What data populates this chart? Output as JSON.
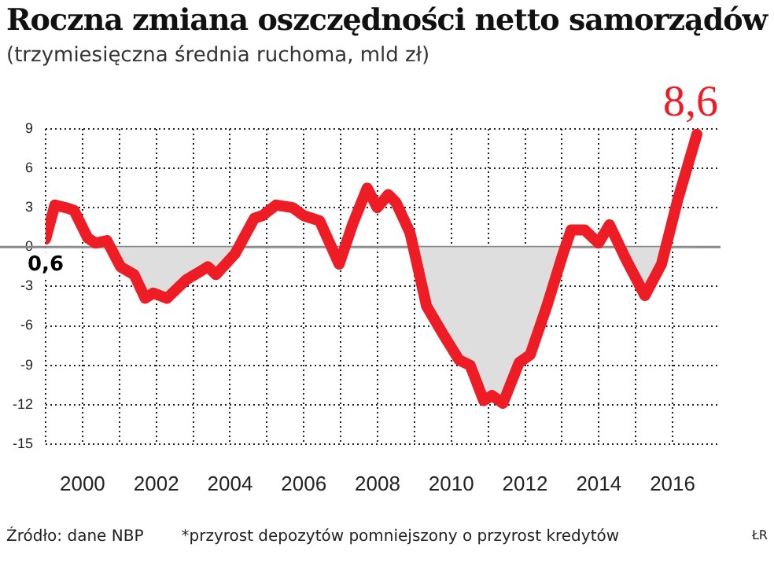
{
  "chart_data": {
    "type": "area",
    "title": "Roczna zmiana oszczędności netto samorządów",
    "subtitle": "(trzymiesięczna średnia ruchoma, mld zł)",
    "x": [
      1999.0,
      1999.25,
      1999.55,
      1999.77,
      2000.14,
      2000.36,
      2000.66,
      2001.03,
      2001.4,
      2001.7,
      2001.92,
      2002.29,
      2002.81,
      2003.4,
      2003.62,
      2004.14,
      2004.66,
      2004.88,
      2005.25,
      2005.7,
      2005.99,
      2006.43,
      2006.96,
      2007.32,
      2007.72,
      2007.99,
      2008.29,
      2008.5,
      2008.88,
      2009.33,
      2009.77,
      2010.21,
      2010.51,
      2010.88,
      2011.1,
      2011.4,
      2011.84,
      2012.14,
      2012.59,
      2013.03,
      2013.25,
      2013.62,
      2013.99,
      2014.29,
      2014.73,
      2015.25,
      2015.7,
      2016.14,
      2016.66
    ],
    "series": [
      {
        "color": "#ee1c25",
        "values": [
          0.6,
          3.2,
          3.0,
          2.8,
          0.7,
          0.3,
          0.5,
          -1.5,
          -2.1,
          -3.9,
          -3.5,
          -3.9,
          -2.5,
          -1.5,
          -2.1,
          -0.5,
          2.2,
          2.4,
          3.2,
          3.0,
          2.4,
          2.0,
          -1.3,
          1.7,
          4.5,
          3.0,
          4.0,
          3.4,
          1.1,
          -4.5,
          -6.6,
          -8.6,
          -9.0,
          -11.7,
          -11.3,
          -11.9,
          -8.8,
          -8.2,
          -4.5,
          -0.5,
          1.3,
          1.3,
          0.3,
          1.7,
          -0.9,
          -3.7,
          -1.3,
          3.6,
          8.6
        ]
      }
    ],
    "xlim": [
      1999,
      2017.3
    ],
    "xticks": [
      {
        "value": 1999,
        "label": null
      },
      2000,
      {
        "value": 2001,
        "label": null
      },
      2002,
      {
        "value": 2003,
        "label": null
      },
      2004,
      {
        "value": 2005,
        "label": null
      },
      2006,
      {
        "value": 2007,
        "label": null
      },
      2008,
      {
        "value": 2009,
        "label": null
      },
      2010,
      {
        "value": 2011,
        "label": null
      },
      2012,
      {
        "value": 2013,
        "label": null
      },
      2014,
      {
        "value": 2015,
        "label": null
      },
      2016
    ],
    "ylim": [
      -15,
      9
    ],
    "yticks": [
      -15,
      -12,
      -9,
      -6,
      -3,
      0,
      3,
      6,
      9
    ],
    "ref_lines": [
      {
        "axis": "y",
        "value": 0,
        "color": "#888888"
      }
    ],
    "grid": true,
    "legend": false,
    "marker": "none",
    "line_style": "solid",
    "annotations": [
      {
        "text": "8,6",
        "x": 2016.66,
        "y": 8.6
      },
      {
        "text": "0,6",
        "x": 1999.0,
        "y": 0.6
      },
      "Źródło: dane NBP",
      "*przyrost depozytów pomniejszony o przyrost kredytów",
      "ŁR"
    ]
  }
}
